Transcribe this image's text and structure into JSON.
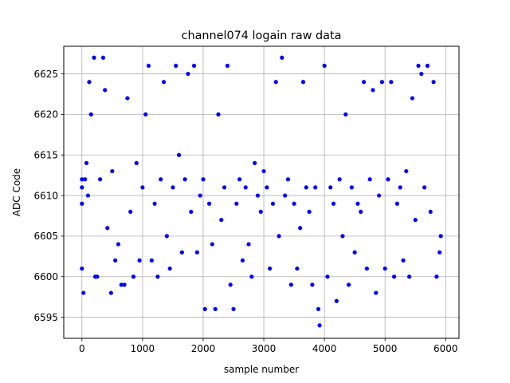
{
  "chart_data": {
    "type": "scatter",
    "title": "channel074 logain raw data",
    "xlabel": "sample number",
    "ylabel": "ADC Code",
    "xlim": [
      -300,
      6220
    ],
    "ylim": [
      6592.4,
      6628.4
    ],
    "x_ticks": [
      0,
      1000,
      2000,
      3000,
      4000,
      5000,
      6000
    ],
    "x_tick_labels": [
      "0",
      "1000",
      "2000",
      "3000",
      "4000",
      "5000",
      "6000"
    ],
    "y_ticks": [
      6595,
      6600,
      6605,
      6610,
      6615,
      6620,
      6625
    ],
    "y_tick_labels": [
      "6595",
      "6600",
      "6605",
      "6610",
      "6615",
      "6620",
      "6625"
    ],
    "grid": true,
    "marker_color": "#0000ff",
    "series": [
      {
        "marker": "circle",
        "points": [
          [
            0,
            6611
          ],
          [
            0,
            6609
          ],
          [
            0,
            6612
          ],
          [
            0,
            6601
          ],
          [
            25,
            6598
          ],
          [
            50,
            6612
          ],
          [
            75,
            6614
          ],
          [
            100,
            6610
          ],
          [
            120,
            6624
          ],
          [
            150,
            6620
          ],
          [
            200,
            6627
          ],
          [
            220,
            6600
          ],
          [
            250,
            6600
          ],
          [
            300,
            6612
          ],
          [
            350,
            6627
          ],
          [
            380,
            6623
          ],
          [
            420,
            6606
          ],
          [
            480,
            6598
          ],
          [
            500,
            6613
          ],
          [
            550,
            6602
          ],
          [
            600,
            6604
          ],
          [
            650,
            6599
          ],
          [
            700,
            6599
          ],
          [
            750,
            6622
          ],
          [
            800,
            6608
          ],
          [
            850,
            6600
          ],
          [
            900,
            6614
          ],
          [
            950,
            6602
          ],
          [
            1000,
            6611
          ],
          [
            1050,
            6620
          ],
          [
            1100,
            6626
          ],
          [
            1150,
            6602
          ],
          [
            1200,
            6609
          ],
          [
            1250,
            6600
          ],
          [
            1300,
            6612
          ],
          [
            1350,
            6624
          ],
          [
            1400,
            6605
          ],
          [
            1450,
            6601
          ],
          [
            1500,
            6611
          ],
          [
            1550,
            6626
          ],
          [
            1600,
            6615
          ],
          [
            1650,
            6603
          ],
          [
            1700,
            6612
          ],
          [
            1750,
            6625
          ],
          [
            1800,
            6608
          ],
          [
            1850,
            6626
          ],
          [
            1900,
            6603
          ],
          [
            1950,
            6610
          ],
          [
            2000,
            6612
          ],
          [
            2030,
            6596
          ],
          [
            2100,
            6609
          ],
          [
            2150,
            6604
          ],
          [
            2200,
            6596
          ],
          [
            2250,
            6620
          ],
          [
            2300,
            6607
          ],
          [
            2350,
            6611
          ],
          [
            2400,
            6626
          ],
          [
            2450,
            6599
          ],
          [
            2500,
            6596
          ],
          [
            2550,
            6609
          ],
          [
            2600,
            6612
          ],
          [
            2650,
            6602
          ],
          [
            2700,
            6611
          ],
          [
            2750,
            6604
          ],
          [
            2800,
            6600
          ],
          [
            2850,
            6614
          ],
          [
            2900,
            6610
          ],
          [
            2950,
            6608
          ],
          [
            3000,
            6613
          ],
          [
            3050,
            6611
          ],
          [
            3100,
            6601
          ],
          [
            3150,
            6609
          ],
          [
            3200,
            6624
          ],
          [
            3250,
            6605
          ],
          [
            3300,
            6627
          ],
          [
            3350,
            6610
          ],
          [
            3400,
            6612
          ],
          [
            3450,
            6599
          ],
          [
            3500,
            6609
          ],
          [
            3550,
            6601
          ],
          [
            3600,
            6606
          ],
          [
            3650,
            6624
          ],
          [
            3700,
            6611
          ],
          [
            3750,
            6608
          ],
          [
            3800,
            6599
          ],
          [
            3850,
            6611
          ],
          [
            3900,
            6596
          ],
          [
            3920,
            6594
          ],
          [
            4000,
            6626
          ],
          [
            4050,
            6600
          ],
          [
            4100,
            6611
          ],
          [
            4150,
            6609
          ],
          [
            4200,
            6597
          ],
          [
            4250,
            6612
          ],
          [
            4300,
            6605
          ],
          [
            4350,
            6620
          ],
          [
            4400,
            6599
          ],
          [
            4450,
            6611
          ],
          [
            4500,
            6603
          ],
          [
            4550,
            6609
          ],
          [
            4600,
            6608
          ],
          [
            4650,
            6624
          ],
          [
            4700,
            6601
          ],
          [
            4750,
            6612
          ],
          [
            4800,
            6623
          ],
          [
            4850,
            6598
          ],
          [
            4900,
            6610
          ],
          [
            4950,
            6624
          ],
          [
            5000,
            6601
          ],
          [
            5050,
            6612
          ],
          [
            5100,
            6624
          ],
          [
            5150,
            6600
          ],
          [
            5200,
            6609
          ],
          [
            5250,
            6611
          ],
          [
            5300,
            6602
          ],
          [
            5350,
            6613
          ],
          [
            5400,
            6600
          ],
          [
            5450,
            6622
          ],
          [
            5500,
            6607
          ],
          [
            5550,
            6626
          ],
          [
            5600,
            6625
          ],
          [
            5650,
            6611
          ],
          [
            5700,
            6626
          ],
          [
            5750,
            6608
          ],
          [
            5800,
            6624
          ],
          [
            5850,
            6600
          ],
          [
            5900,
            6603
          ],
          [
            5920,
            6605
          ]
        ]
      }
    ]
  }
}
